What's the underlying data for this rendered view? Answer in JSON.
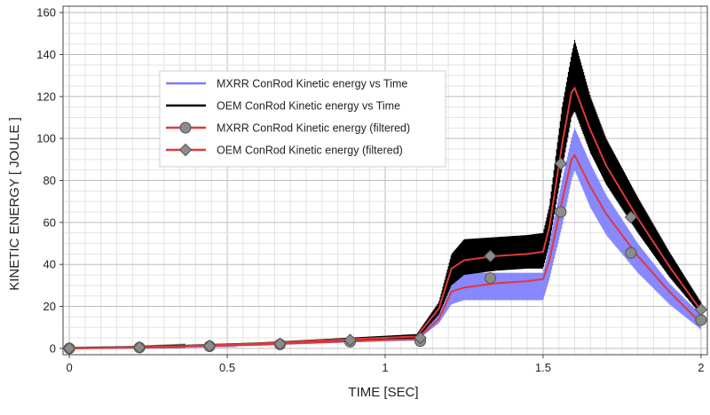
{
  "chart_data": {
    "type": "line",
    "title": "",
    "xlabel": "TIME [SEC]",
    "ylabel": "KINETIC ENERGY [ JOULE ]",
    "xlim": [
      -0.02,
      2.02
    ],
    "ylim": [
      -3,
      163
    ],
    "x_ticks": [
      "0",
      "0.5",
      "1",
      "1.5",
      "2"
    ],
    "x_tick_values": [
      0,
      0.5,
      1,
      1.5,
      2
    ],
    "y_ticks": [
      "0",
      "20",
      "40",
      "60",
      "80",
      "100",
      "120",
      "140",
      "160"
    ],
    "y_tick_values": [
      0,
      20,
      40,
      60,
      80,
      100,
      120,
      140,
      160
    ],
    "grid": true,
    "legend_position": "upper-center",
    "series": [
      {
        "name": "MXRR ConRod Kinetic energy vs Time",
        "color": "#7b7bff",
        "style": "line",
        "x": [
          0,
          0.2,
          0.4,
          0.6,
          0.8,
          1.0,
          1.1,
          1.17,
          1.21,
          1.25,
          1.35,
          1.45,
          1.5,
          1.52,
          1.56,
          1.59,
          1.6,
          1.65,
          1.7,
          1.8,
          1.9,
          2.0
        ],
        "low": [
          0,
          0.2,
          0.7,
          1.3,
          2.4,
          3.4,
          3.7,
          12,
          21,
          23,
          23,
          23,
          23,
          33,
          58,
          80,
          85,
          67,
          54,
          36,
          21,
          9
        ],
        "high": [
          0.3,
          0.6,
          1.4,
          2.2,
          3.4,
          4.8,
          5.2,
          16,
          30,
          36,
          36,
          36,
          36,
          50,
          80,
          100,
          105,
          88,
          73,
          50,
          31,
          16
        ]
      },
      {
        "name": "OEM ConRod Kinetic energy vs Time",
        "color": "#000000",
        "style": "line",
        "x": [
          0,
          0.2,
          0.4,
          0.6,
          0.8,
          1.0,
          1.1,
          1.17,
          1.21,
          1.25,
          1.35,
          1.45,
          1.5,
          1.52,
          1.56,
          1.59,
          1.6,
          1.65,
          1.7,
          1.8,
          1.9,
          2.0
        ],
        "low": [
          0,
          0.3,
          0.9,
          1.7,
          3,
          4.2,
          4.6,
          16,
          30,
          35,
          37,
          38,
          38,
          50,
          85,
          110,
          113,
          93,
          78,
          55,
          34,
          16
        ],
        "high": [
          0.4,
          0.8,
          1.8,
          2.8,
          4.4,
          6,
          6.8,
          22,
          45,
          52,
          53,
          54,
          55,
          68,
          115,
          140,
          147,
          120,
          100,
          72,
          46,
          22
        ]
      },
      {
        "name": "MXRR ConRod Kinetic energy (filtered)",
        "color": "#e0393a",
        "style": "line-with-markers",
        "marker": "circle",
        "x": [
          0,
          0.2,
          0.4,
          0.6,
          0.8,
          1.0,
          1.1,
          1.17,
          1.21,
          1.25,
          1.35,
          1.45,
          1.5,
          1.52,
          1.56,
          1.59,
          1.6,
          1.65,
          1.7,
          1.8,
          1.9,
          2.0
        ],
        "y": [
          0,
          0.4,
          1,
          1.8,
          2.9,
          4.1,
          4.4,
          14,
          27,
          29,
          31,
          32,
          33,
          42,
          70,
          90,
          92,
          77,
          64,
          44,
          27,
          12
        ],
        "marker_x": [
          0,
          0.222,
          0.444,
          0.667,
          0.889,
          1.111,
          1.333,
          1.556,
          1.778,
          2.0
        ],
        "marker_y": [
          0,
          0.4,
          1,
          1.9,
          3.2,
          3.5,
          33.5,
          65,
          45.5,
          13.5
        ]
      },
      {
        "name": "OEM ConRod Kinetic energy (filtered)",
        "color": "#e0393a",
        "style": "line-with-markers",
        "marker": "diamond",
        "x": [
          0,
          0.2,
          0.4,
          0.6,
          0.8,
          1.0,
          1.1,
          1.17,
          1.21,
          1.25,
          1.35,
          1.45,
          1.5,
          1.52,
          1.56,
          1.59,
          1.6,
          1.65,
          1.7,
          1.8,
          1.9,
          2.0
        ],
        "y": [
          0,
          0.5,
          1.3,
          2.3,
          3.8,
          5.1,
          5.7,
          19,
          38,
          42,
          44,
          45,
          46,
          58,
          97,
          122,
          124,
          104,
          87,
          62,
          39,
          18
        ],
        "marker_x": [
          0,
          0.222,
          0.444,
          0.667,
          0.889,
          1.111,
          1.333,
          1.556,
          1.778,
          2.0
        ],
        "marker_y": [
          0,
          0.5,
          1.2,
          2.2,
          4,
          5,
          44,
          88,
          62.5,
          18.5
        ]
      }
    ]
  }
}
